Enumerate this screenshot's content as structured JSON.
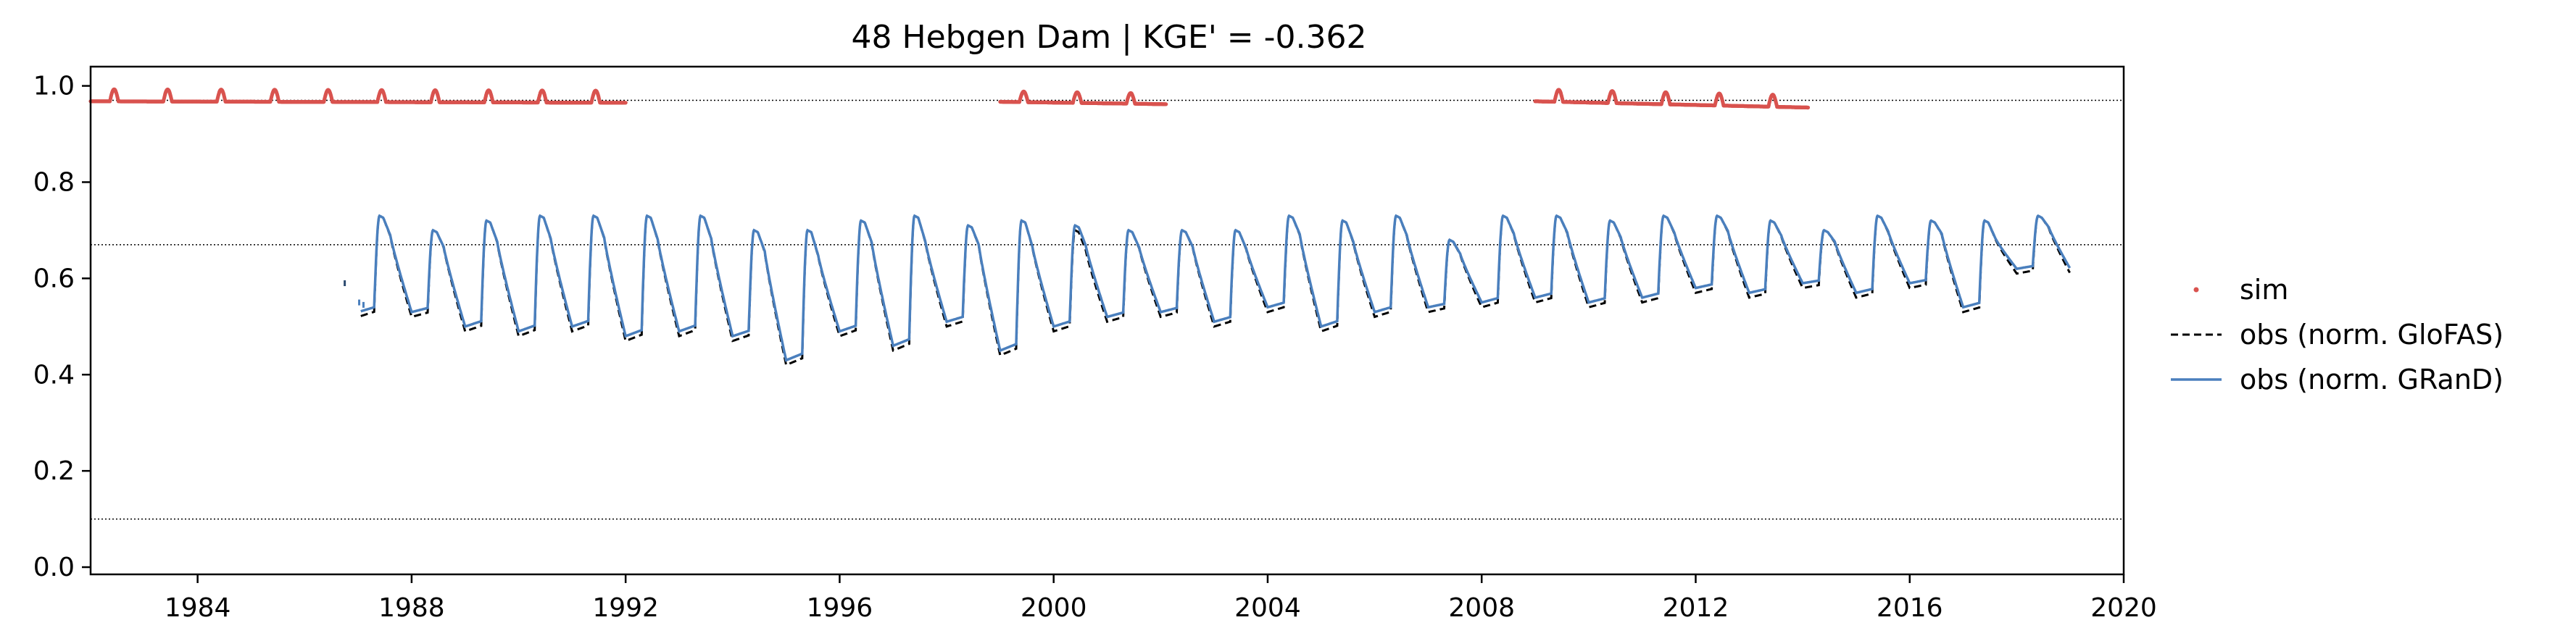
{
  "chart_data": {
    "type": "line",
    "title": "48  Hebgen Dam | KGE' = -0.362",
    "xlabel": "",
    "ylabel": "",
    "xlim": [
      1982.0,
      2020.0
    ],
    "ylim": [
      -0.015,
      1.04
    ],
    "x_ticks": [
      1984,
      1988,
      1992,
      1996,
      2000,
      2004,
      2008,
      2012,
      2016,
      2020
    ],
    "x_tick_labels": [
      "1984",
      "1988",
      "1992",
      "1996",
      "2000",
      "2004",
      "2008",
      "2012",
      "2016",
      "2020"
    ],
    "y_ticks": [
      0.0,
      0.2,
      0.4,
      0.6,
      0.8,
      1.0
    ],
    "y_tick_labels": [
      "0.0",
      "0.2",
      "0.4",
      "0.6",
      "0.8",
      "1.0"
    ],
    "reference_lines": [
      0.97,
      0.67,
      0.1
    ],
    "legend": {
      "placement": "right",
      "entries": [
        "sim",
        "obs (norm. GloFAS)",
        "obs (norm. GRanD)"
      ]
    },
    "colors": {
      "sim": "#d9534f",
      "glofas": "#000000",
      "grand": "#4a7fbd"
    },
    "series": [
      {
        "name": "sim",
        "style": "points",
        "segments": [
          {
            "x0": 1982.0,
            "x1": 1992.0,
            "base": 0.968,
            "end": 0.965,
            "peak": 0.025
          },
          {
            "x0": 1999.0,
            "x1": 2002.1,
            "base": 0.967,
            "end": 0.962,
            "peak": 0.022
          },
          {
            "x0": 2009.0,
            "x1": 2014.1,
            "base": 0.968,
            "end": 0.955,
            "peak": 0.025
          }
        ]
      },
      {
        "name": "obs (norm. GloFAS)",
        "style": "dashed",
        "x0": 1987.05,
        "x1": 2019.0,
        "years": [
          1987,
          1988,
          1989,
          1990,
          1991,
          1992,
          1993,
          1994,
          1995,
          1996,
          1997,
          1998,
          1999,
          2000,
          2001,
          2002,
          2003,
          2004,
          2005,
          2006,
          2007,
          2008,
          2009,
          2010,
          2011,
          2012,
          2013,
          2014,
          2015,
          2016,
          2017,
          2018
        ],
        "annual_max": [
          0.73,
          0.7,
          0.72,
          0.73,
          0.73,
          0.73,
          0.73,
          0.7,
          0.7,
          0.72,
          0.73,
          0.71,
          0.72,
          0.7,
          0.7,
          0.7,
          0.7,
          0.73,
          0.72,
          0.73,
          0.68,
          0.73,
          0.73,
          0.72,
          0.73,
          0.73,
          0.72,
          0.7,
          0.73,
          0.72,
          0.72,
          0.73
        ],
        "annual_min": [
          0.52,
          0.52,
          0.49,
          0.48,
          0.49,
          0.47,
          0.48,
          0.47,
          0.42,
          0.48,
          0.45,
          0.5,
          0.44,
          0.49,
          0.51,
          0.52,
          0.5,
          0.53,
          0.49,
          0.52,
          0.53,
          0.54,
          0.55,
          0.54,
          0.55,
          0.57,
          0.56,
          0.58,
          0.56,
          0.58,
          0.53,
          0.61
        ]
      },
      {
        "name": "obs (norm. GRanD)",
        "style": "solid",
        "x0": 1987.05,
        "x1": 2019.0,
        "years": [
          1987,
          1988,
          1989,
          1990,
          1991,
          1992,
          1993,
          1994,
          1995,
          1996,
          1997,
          1998,
          1999,
          2000,
          2001,
          2002,
          2003,
          2004,
          2005,
          2006,
          2007,
          2008,
          2009,
          2010,
          2011,
          2012,
          2013,
          2014,
          2015,
          2016,
          2017,
          2018
        ],
        "annual_max": [
          0.73,
          0.7,
          0.72,
          0.73,
          0.73,
          0.73,
          0.73,
          0.7,
          0.7,
          0.72,
          0.73,
          0.71,
          0.72,
          0.71,
          0.7,
          0.7,
          0.7,
          0.73,
          0.72,
          0.73,
          0.68,
          0.73,
          0.73,
          0.72,
          0.73,
          0.73,
          0.72,
          0.7,
          0.73,
          0.72,
          0.72,
          0.73
        ],
        "annual_min": [
          0.53,
          0.53,
          0.5,
          0.49,
          0.5,
          0.48,
          0.49,
          0.48,
          0.43,
          0.49,
          0.46,
          0.51,
          0.45,
          0.5,
          0.52,
          0.53,
          0.51,
          0.54,
          0.5,
          0.53,
          0.54,
          0.55,
          0.56,
          0.55,
          0.56,
          0.58,
          0.57,
          0.59,
          0.57,
          0.59,
          0.54,
          0.62
        ]
      }
    ],
    "early_marks": [
      {
        "x": 1986.75,
        "y": 0.59
      },
      {
        "x": 1987.02,
        "y": 0.55
      },
      {
        "x": 1987.1,
        "y": 0.545
      }
    ]
  }
}
